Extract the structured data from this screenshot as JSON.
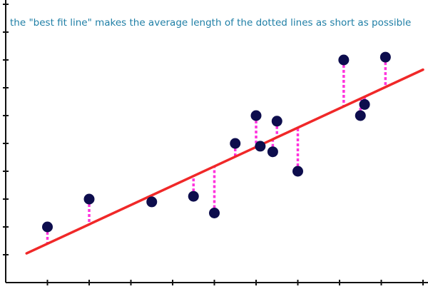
{
  "caption": "the \"best fit line\" makes the average length of the dotted lines as short as possible",
  "colors": {
    "caption": "#1f7fa6",
    "axis": "#111111",
    "point": "#0d0d4d",
    "fit_line": "#f02828",
    "residual": "#ff33dd"
  },
  "chart_data": {
    "type": "scatter",
    "title": "",
    "xlabel": "",
    "ylabel": "",
    "xlim": [
      0,
      10
    ],
    "ylim": [
      0,
      10
    ],
    "xticks": [
      1,
      2,
      3,
      4,
      5,
      6,
      7,
      8,
      9,
      10
    ],
    "yticks": [
      1,
      2,
      3,
      4,
      5,
      6,
      7,
      8,
      9,
      10
    ],
    "tick_labels_shown": false,
    "grid": false,
    "points": [
      {
        "x": 1.0,
        "y": 2.0
      },
      {
        "x": 2.0,
        "y": 3.0
      },
      {
        "x": 3.5,
        "y": 2.9
      },
      {
        "x": 4.5,
        "y": 3.1
      },
      {
        "x": 5.0,
        "y": 2.5
      },
      {
        "x": 5.5,
        "y": 5.0
      },
      {
        "x": 6.0,
        "y": 6.0
      },
      {
        "x": 6.1,
        "y": 4.9
      },
      {
        "x": 6.4,
        "y": 4.7
      },
      {
        "x": 6.5,
        "y": 5.8
      },
      {
        "x": 7.0,
        "y": 4.0
      },
      {
        "x": 8.1,
        "y": 8.0
      },
      {
        "x": 8.5,
        "y": 6.0
      },
      {
        "x": 8.6,
        "y": 6.4
      },
      {
        "x": 9.1,
        "y": 8.1
      }
    ],
    "fit_line": {
      "x": [
        0.5,
        10.0
      ],
      "y": [
        1.05,
        7.65
      ]
    },
    "residuals": "dotted vertical segments from each point to the fit line"
  }
}
